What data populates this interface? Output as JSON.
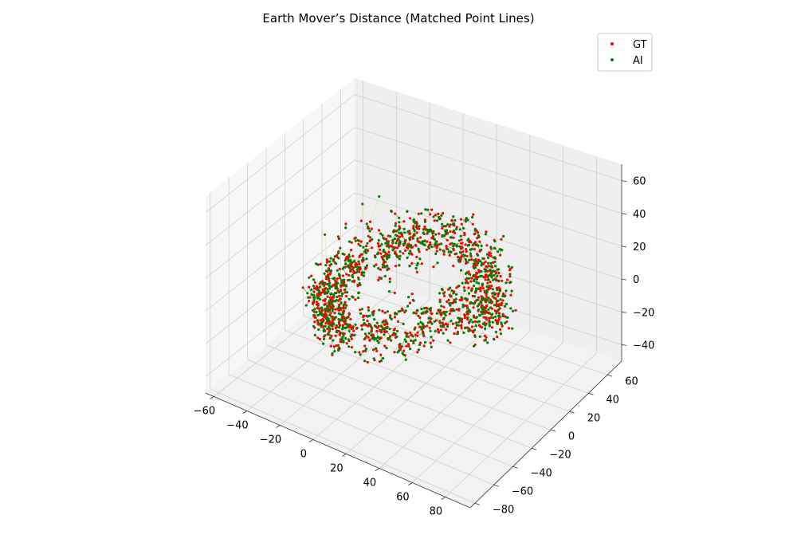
{
  "chart_data": {
    "type": "scatter",
    "projection": "3d",
    "title": "Earth Mover’s Distance (Matched Point Lines)",
    "xlabel": "",
    "ylabel": "",
    "zlabel": "",
    "xlim": [
      -65,
      95
    ],
    "ylim": [
      -85,
      75
    ],
    "zlim": [
      -50,
      70
    ],
    "x_ticks": [
      -60,
      -40,
      -20,
      0,
      20,
      40,
      60,
      80
    ],
    "y_ticks": [
      -80,
      -60,
      -40,
      -20,
      0,
      20,
      40,
      60
    ],
    "z_ticks": [
      -40,
      -20,
      0,
      20,
      40,
      60
    ],
    "grid": true,
    "legend_position": "top-right",
    "series": [
      {
        "name": "GT",
        "color": "#ff0000",
        "marker": "dot"
      },
      {
        "name": "AI",
        "color": "#008000",
        "marker": "dot"
      }
    ],
    "line_colors": {
      "near": "#008000",
      "mid": "#ffd27f",
      "far": "#ff0000"
    },
    "point_count_per_series": 900
  },
  "legend": {
    "gt_label": "GT",
    "ai_label": "AI"
  }
}
